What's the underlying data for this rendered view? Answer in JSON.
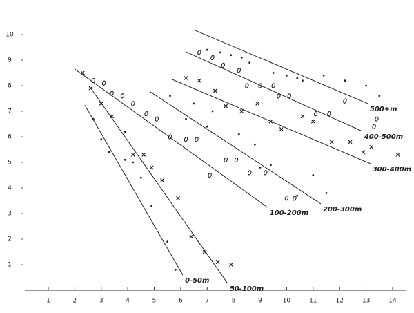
{
  "chart_data": {
    "type": "scatter",
    "xlim": [
      0,
      14.6
    ],
    "ylim": [
      0,
      10.5
    ],
    "xticks": [
      1,
      2,
      3,
      4,
      5,
      6,
      7,
      8,
      9,
      10,
      11,
      12,
      13,
      14
    ],
    "yticks": [
      1,
      2,
      3,
      4,
      5,
      6,
      7,
      8,
      9,
      10
    ],
    "series": [
      {
        "marker": "dot",
        "color": "#222",
        "x": [
          2.7,
          3.0,
          3.3,
          3.9,
          4.2,
          4.5,
          4.9,
          5.5,
          5.8,
          3.9,
          5.6,
          6.5,
          7.2,
          6.2,
          7.0,
          8.2,
          8.8,
          9.4,
          9.0,
          10.4,
          11.0,
          11.5,
          7.5,
          7.9,
          8.3,
          8.6,
          9.5,
          10.0,
          10.4,
          11.4,
          12.2,
          13.0,
          13.5,
          7.0,
          10.6
        ],
        "y": [
          6.7,
          5.9,
          5.4,
          5.1,
          5.0,
          4.4,
          3.3,
          1.9,
          0.8,
          6.2,
          7.6,
          7.3,
          7.0,
          6.7,
          6.4,
          6.1,
          5.7,
          4.9,
          4.8,
          3.7,
          4.5,
          3.8,
          9.3,
          9.2,
          9.1,
          8.9,
          8.5,
          8.4,
          8.3,
          8.4,
          8.2,
          8.0,
          7.6,
          9.4,
          8.2
        ]
      },
      {
        "marker": "x",
        "color": "#222",
        "x": [
          2.3,
          2.6,
          3.0,
          3.4,
          4.2,
          4.6,
          4.9,
          5.3,
          5.9,
          6.4,
          6.9,
          7.4,
          7.9,
          6.2,
          6.7,
          7.3,
          7.7,
          8.3,
          8.9,
          9.4,
          9.8,
          10.6,
          11.0,
          11.7,
          12.4,
          13.2,
          14.2,
          12.9
        ],
        "y": [
          8.5,
          7.9,
          7.3,
          6.8,
          5.3,
          5.3,
          4.8,
          4.3,
          3.6,
          2.1,
          1.5,
          1.1,
          1.0,
          8.3,
          8.2,
          7.8,
          7.2,
          7.0,
          7.3,
          6.6,
          6.3,
          6.8,
          6.6,
          5.8,
          5.8,
          5.6,
          5.3,
          5.4
        ]
      },
      {
        "marker": "o",
        "color": "#222",
        "x": [
          2.7,
          3.1,
          3.4,
          3.8,
          4.2,
          4.7,
          5.1,
          5.6,
          6.2,
          6.6,
          7.1,
          7.7,
          8.1,
          8.6,
          9.2,
          10.0,
          10.3,
          6.7,
          7.2,
          7.6,
          8.2,
          8.5,
          9.0,
          9.5,
          9.7,
          10.1,
          11.1,
          11.6,
          12.2,
          13.3,
          13.4
        ],
        "y": [
          8.2,
          8.1,
          7.7,
          7.6,
          7.3,
          6.9,
          6.7,
          6.0,
          5.9,
          5.9,
          4.5,
          5.1,
          5.1,
          4.6,
          4.6,
          3.6,
          3.6,
          9.3,
          9.1,
          8.8,
          8.6,
          8.0,
          8.0,
          8.0,
          7.6,
          7.6,
          6.9,
          6.9,
          7.4,
          6.4,
          6.7
        ]
      }
    ],
    "lines": [
      {
        "label": "0-50m",
        "x": [
          2.38,
          6.08
        ],
        "y": [
          7.24,
          0.59
        ]
      },
      {
        "label": "50-100m",
        "x": [
          2.56,
          7.77
        ],
        "y": [
          7.97,
          0.27
        ]
      },
      {
        "label": "100-200m",
        "x": [
          2.0,
          9.28
        ],
        "y": [
          8.65,
          3.24
        ]
      },
      {
        "label": "200-300m",
        "x": [
          4.85,
          11.29
        ],
        "y": [
          7.76,
          3.38
        ]
      },
      {
        "label": "300-400m",
        "x": [
          5.69,
          13.16
        ],
        "y": [
          8.24,
          4.95
        ]
      },
      {
        "label": "400-500m",
        "x": [
          6.21,
          12.85
        ],
        "y": [
          9.32,
          6.22
        ]
      },
      {
        "label": "500+m",
        "x": [
          6.55,
          13.06
        ],
        "y": [
          10.16,
          7.3
        ]
      }
    ]
  }
}
